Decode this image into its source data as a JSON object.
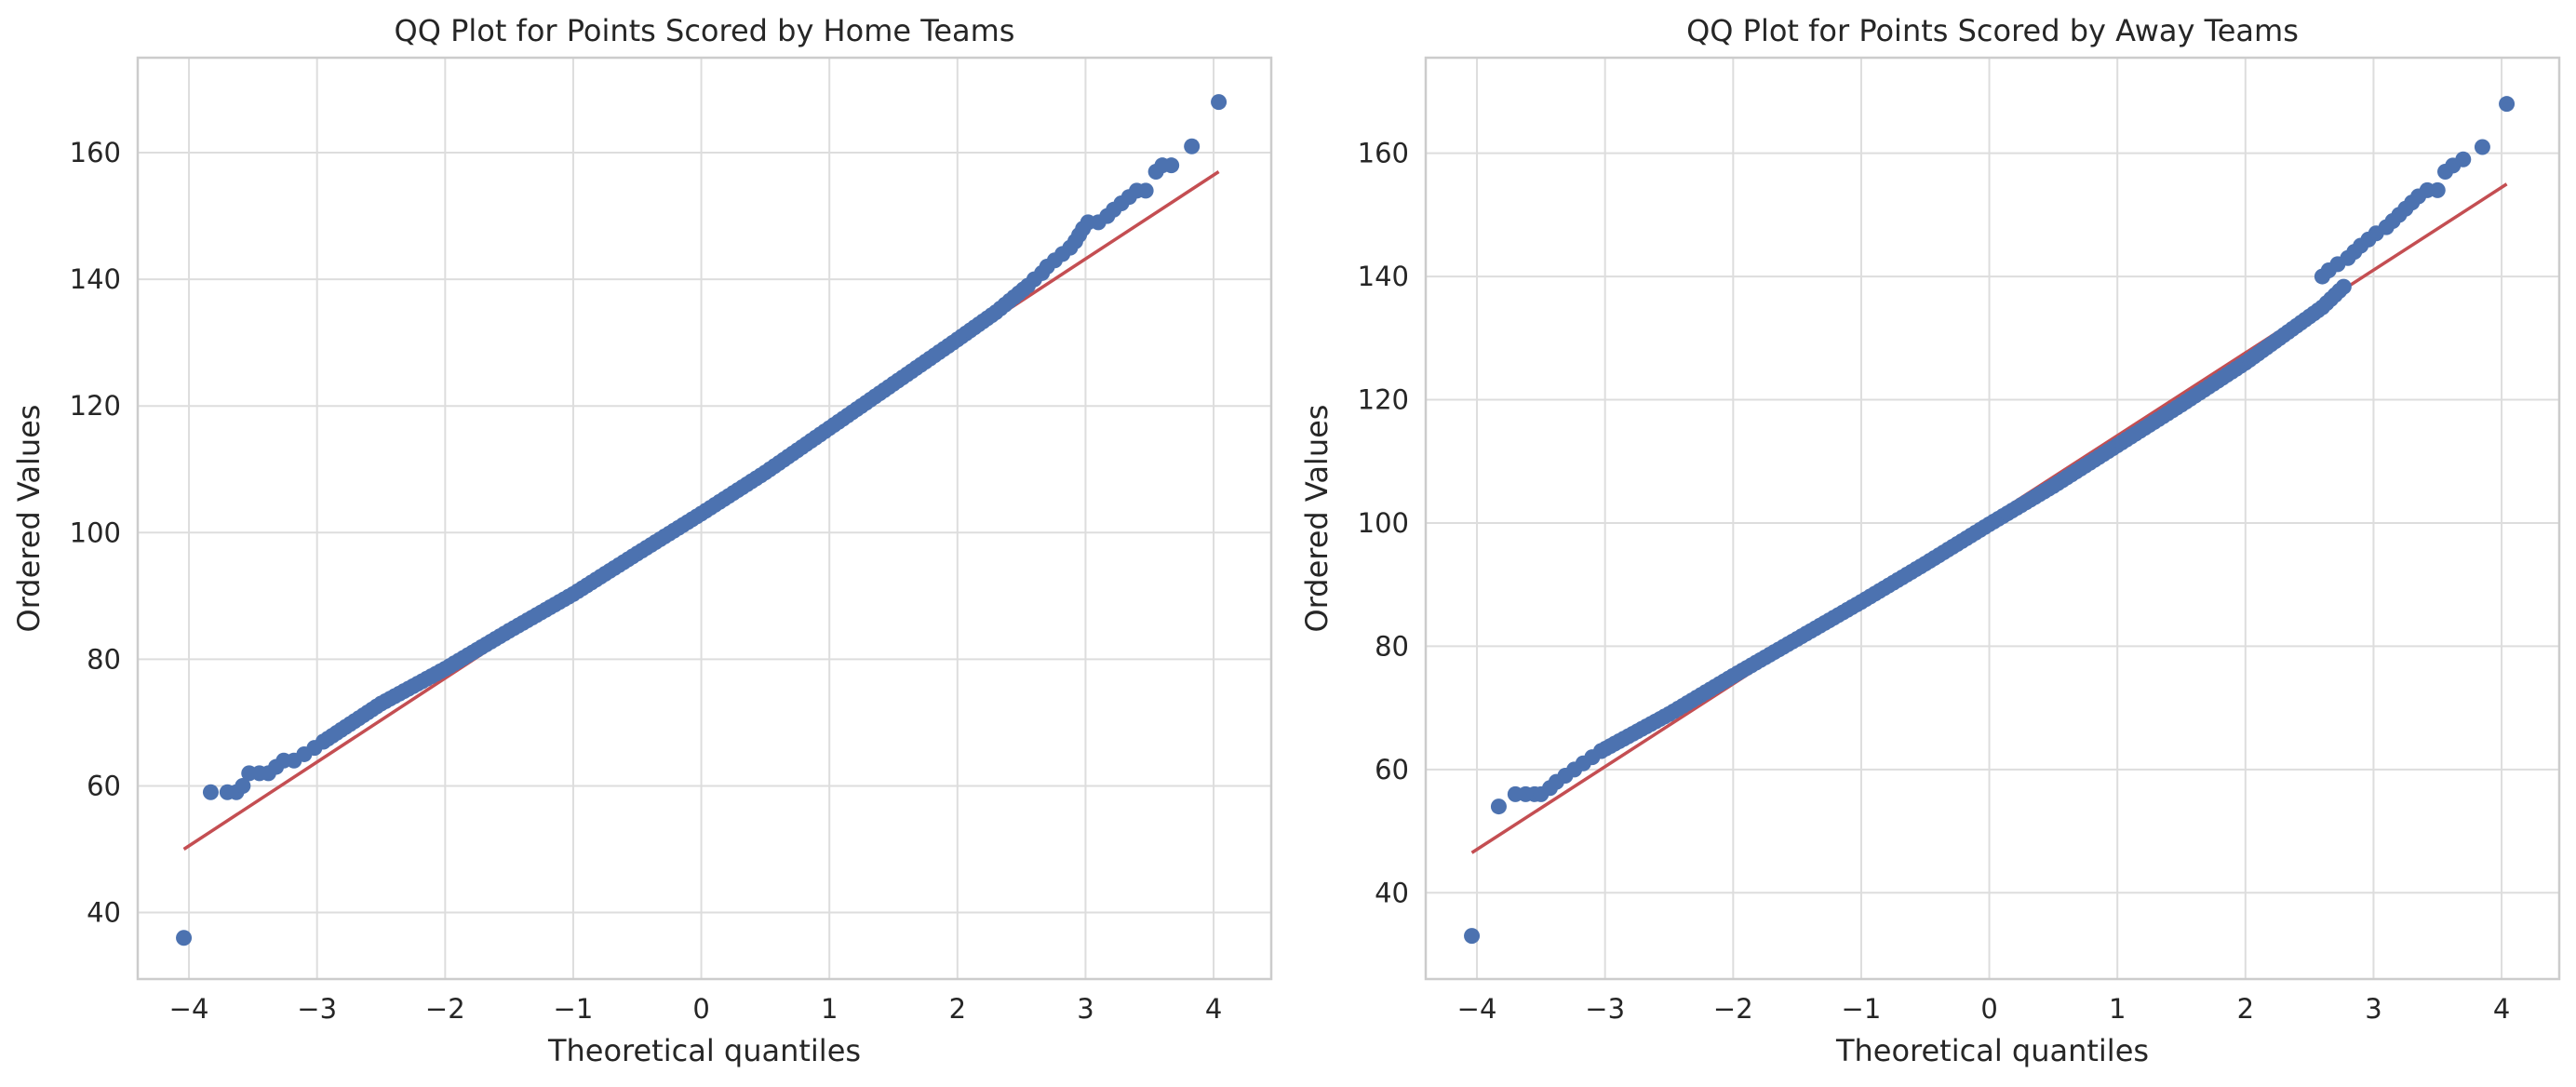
{
  "figure": {
    "panel_count": 2
  },
  "colors": {
    "points": "#4c72b0",
    "line": "#c44e52",
    "grid": "#dddddd",
    "frame": "#cccccc",
    "text": "#262626"
  },
  "chart_data": [
    {
      "type": "scatter",
      "title": "QQ Plot for Points Scored by Home Teams",
      "xlabel": "Theoretical quantiles",
      "ylabel": "Ordered Values",
      "xlim": [
        -4.4,
        4.45
      ],
      "ylim": [
        29.5,
        175
      ],
      "xticks": [
        -4,
        -3,
        -2,
        -1,
        0,
        1,
        2,
        3,
        4
      ],
      "xtick_labels": [
        "−4",
        "−3",
        "−2",
        "−1",
        "0",
        "1",
        "2",
        "3",
        "4"
      ],
      "yticks": [
        40,
        60,
        80,
        100,
        120,
        140,
        160
      ],
      "ytick_labels": [
        "40",
        "60",
        "80",
        "100",
        "120",
        "140",
        "160"
      ],
      "grid": true,
      "series": [
        {
          "kind": "points",
          "tail_points": [
            [
              -4.04,
              36
            ],
            [
              -3.83,
              59
            ],
            [
              -3.7,
              59
            ],
            [
              -3.63,
              59
            ],
            [
              -3.58,
              60
            ],
            [
              -3.53,
              62
            ],
            [
              -3.45,
              62
            ],
            [
              -3.38,
              62
            ],
            [
              -3.32,
              63
            ],
            [
              -3.26,
              64
            ],
            [
              -3.18,
              64
            ],
            [
              -3.1,
              65
            ],
            [
              -3.02,
              66
            ],
            [
              -2.95,
              67
            ],
            [
              2.55,
              139
            ],
            [
              2.6,
              140
            ],
            [
              2.66,
              141
            ],
            [
              2.7,
              142
            ],
            [
              2.76,
              143
            ],
            [
              2.82,
              144
            ],
            [
              2.88,
              145
            ],
            [
              2.92,
              146
            ],
            [
              2.95,
              147
            ],
            [
              2.98,
              148
            ],
            [
              3.02,
              149
            ],
            [
              3.1,
              149
            ],
            [
              3.17,
              150
            ],
            [
              3.22,
              151
            ],
            [
              3.28,
              152
            ],
            [
              3.34,
              153
            ],
            [
              3.4,
              154
            ],
            [
              3.47,
              154
            ],
            [
              3.55,
              157
            ],
            [
              3.6,
              158
            ],
            [
              3.67,
              158
            ],
            [
              3.83,
              161
            ],
            [
              4.04,
              168
            ]
          ],
          "body_curve": [
            [
              -2.95,
              67
            ],
            [
              -2.5,
              73
            ],
            [
              -2,
              78.5
            ],
            [
              -1.5,
              84.5
            ],
            [
              -1,
              90.3
            ],
            [
              -0.5,
              96.7
            ],
            [
              0,
              103
            ],
            [
              0.5,
              109.5
            ],
            [
              1,
              116.5
            ],
            [
              1.5,
              123.5
            ],
            [
              2,
              130.5
            ],
            [
              2.3,
              134.8
            ],
            [
              2.55,
              139
            ]
          ]
        },
        {
          "kind": "line",
          "points": [
            [
              -4.04,
              50
            ],
            [
              4.04,
              157
            ]
          ]
        }
      ]
    },
    {
      "type": "scatter",
      "title": "QQ Plot for Points Scored by Away Teams",
      "xlabel": "Theoretical quantiles",
      "ylabel": "Ordered Values",
      "xlim": [
        -4.4,
        4.45
      ],
      "ylim": [
        26,
        175.5
      ],
      "xticks": [
        -4,
        -3,
        -2,
        -1,
        0,
        1,
        2,
        3,
        4
      ],
      "xtick_labels": [
        "−4",
        "−3",
        "−2",
        "−1",
        "0",
        "1",
        "2",
        "3",
        "4"
      ],
      "yticks": [
        40,
        60,
        80,
        100,
        120,
        140,
        160
      ],
      "ytick_labels": [
        "40",
        "60",
        "80",
        "100",
        "120",
        "140",
        "160"
      ],
      "grid": true,
      "series": [
        {
          "kind": "points",
          "tail_points": [
            [
              -4.04,
              33
            ],
            [
              -3.83,
              54
            ],
            [
              -3.7,
              56
            ],
            [
              -3.62,
              56
            ],
            [
              -3.55,
              56
            ],
            [
              -3.5,
              56
            ],
            [
              -3.43,
              57
            ],
            [
              -3.38,
              58
            ],
            [
              -3.31,
              59
            ],
            [
              -3.24,
              60
            ],
            [
              -3.17,
              61
            ],
            [
              -3.1,
              62
            ],
            [
              -3.03,
              63
            ],
            [
              2.6,
              140
            ],
            [
              2.65,
              141
            ],
            [
              2.72,
              142
            ],
            [
              2.8,
              143
            ],
            [
              2.85,
              144
            ],
            [
              2.9,
              145
            ],
            [
              2.96,
              146
            ],
            [
              3.02,
              147
            ],
            [
              3.1,
              148
            ],
            [
              3.15,
              149
            ],
            [
              3.2,
              150
            ],
            [
              3.25,
              151
            ],
            [
              3.3,
              152
            ],
            [
              3.35,
              153
            ],
            [
              3.42,
              154
            ],
            [
              3.5,
              154
            ],
            [
              3.56,
              157
            ],
            [
              3.62,
              158
            ],
            [
              3.7,
              159
            ],
            [
              3.85,
              161
            ],
            [
              4.04,
              168
            ]
          ],
          "body_curve": [
            [
              -3.03,
              63
            ],
            [
              -2.5,
              69
            ],
            [
              -2,
              75.2
            ],
            [
              -1.5,
              81.2
            ],
            [
              -1,
              87.2
            ],
            [
              -0.5,
              93.4
            ],
            [
              0,
              99.8
            ],
            [
              0.5,
              106
            ],
            [
              1,
              112.6
            ],
            [
              1.5,
              119.2
            ],
            [
              2,
              126
            ],
            [
              2.3,
              130.5
            ],
            [
              2.6,
              135
            ],
            [
              2.8,
              139
            ]
          ]
        },
        {
          "kind": "line",
          "points": [
            [
              -4.04,
              46.5
            ],
            [
              4.04,
              155
            ]
          ]
        }
      ]
    }
  ]
}
